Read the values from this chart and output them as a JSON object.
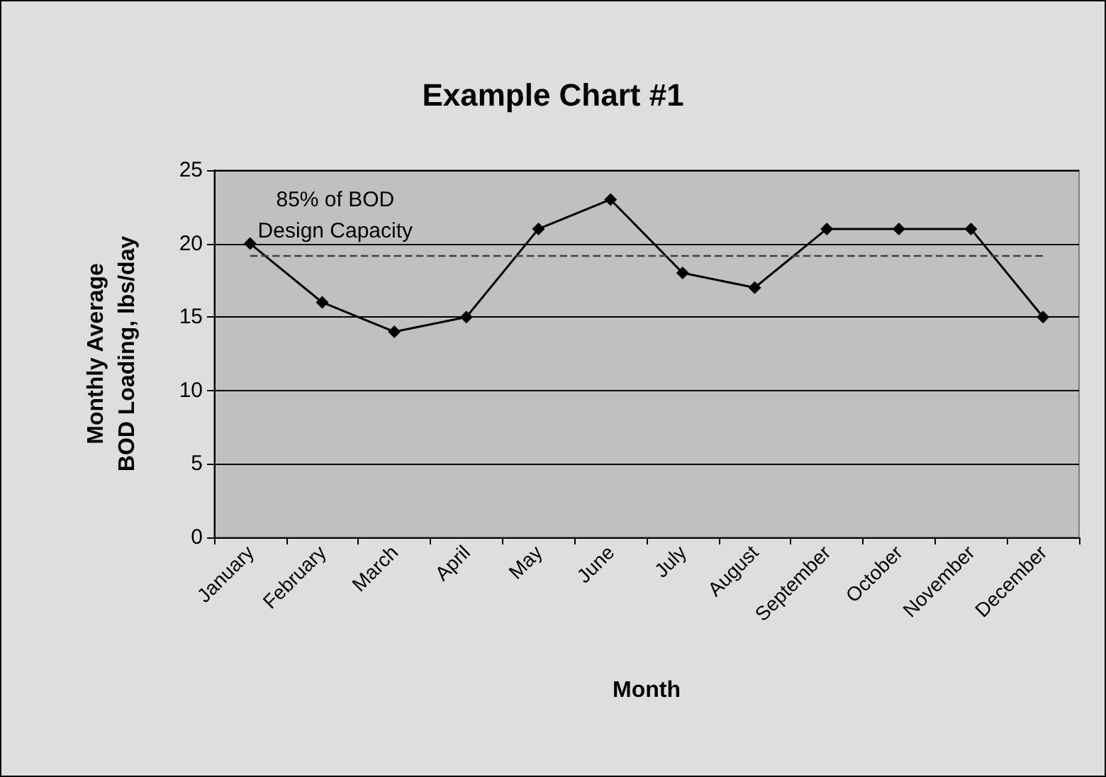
{
  "chart_data": {
    "type": "line",
    "title": "Example Chart #1",
    "xlabel": "Month",
    "ylabel": "Monthly Average\nBOD Loading, lbs/day",
    "categories": [
      "January",
      "February",
      "March",
      "April",
      "May",
      "June",
      "July",
      "August",
      "September",
      "October",
      "November",
      "December"
    ],
    "series": [
      {
        "color": "#000000",
        "values": [
          20,
          16,
          14,
          15,
          21,
          23,
          18,
          17,
          21,
          21,
          21,
          15
        ]
      }
    ],
    "ylim": [
      0,
      25
    ],
    "yticks": [
      0,
      5,
      10,
      15,
      20,
      25
    ],
    "grid": "y",
    "marker": "diamond",
    "line_style": "solid",
    "ref_lines": [
      {
        "axis": "y",
        "value": 19.2,
        "label": "85% of BOD\nDesign Capacity",
        "color": "#404040",
        "line_style": "dashed"
      }
    ]
  }
}
